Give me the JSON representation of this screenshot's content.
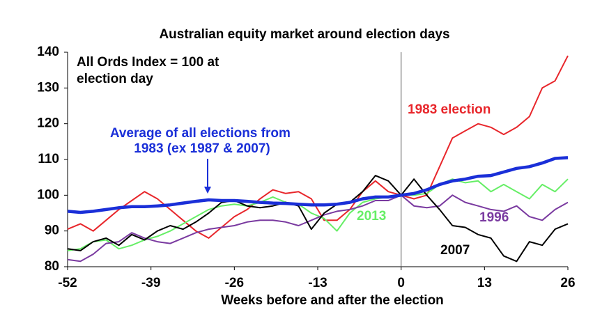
{
  "chart_data": {
    "type": "line",
    "title": "Australian equity market around election days",
    "xlabel": "Weeks before and after the election",
    "annotation": "All Ords Index = 100 at election day",
    "vline": 0,
    "xlim": [
      -52,
      26
    ],
    "xticks": [
      -52,
      -39,
      -26,
      -13,
      0,
      13,
      26
    ],
    "ylim": [
      80,
      140
    ],
    "yticks": [
      80,
      90,
      100,
      110,
      120,
      130,
      140
    ],
    "x": [
      -52,
      -50,
      -48,
      -46,
      -44,
      -42,
      -40,
      -38,
      -36,
      -34,
      -32,
      -30,
      -28,
      -26,
      -24,
      -22,
      -20,
      -18,
      -16,
      -14,
      -12,
      -10,
      -8,
      -6,
      -4,
      -2,
      0,
      2,
      4,
      6,
      8,
      10,
      12,
      14,
      16,
      18,
      20,
      22,
      24,
      26
    ],
    "series": [
      {
        "name": "1983 election",
        "color": "#e8262b",
        "values": [
          90.5,
          92,
          90,
          93,
          96,
          98.5,
          101,
          99,
          96,
          93,
          90,
          88,
          91,
          94,
          96,
          99,
          101.5,
          100.5,
          101,
          99,
          93,
          93,
          96,
          101,
          104,
          101,
          100,
          99,
          100,
          108,
          116,
          118,
          120,
          119,
          117,
          119,
          122,
          130,
          132,
          139
        ]
      },
      {
        "name": "2013",
        "color": "#66ee66",
        "values": [
          84.5,
          85,
          87,
          87.5,
          85,
          86,
          87.5,
          88.5,
          90,
          92,
          94,
          96,
          97,
          97.5,
          97,
          98,
          99.5,
          98,
          97.5,
          95,
          93.5,
          90,
          95,
          98,
          99,
          99.5,
          100,
          100,
          100.5,
          103,
          104.5,
          103.5,
          104,
          101,
          103,
          101,
          99,
          103,
          101,
          104.5
        ]
      },
      {
        "name": "1996",
        "color": "#7a3aa0",
        "values": [
          82,
          81.5,
          83.5,
          86.5,
          87,
          89.5,
          88,
          87,
          86.5,
          88,
          89.5,
          90.5,
          91,
          91.5,
          92.5,
          93,
          93,
          92.5,
          91.5,
          93,
          94.5,
          95.5,
          96,
          97,
          98.5,
          98.5,
          100,
          97,
          96.5,
          97,
          100,
          98,
          97,
          96,
          95.5,
          97,
          94,
          93,
          96,
          98
        ]
      },
      {
        "name": "2007",
        "color": "#000000",
        "values": [
          85,
          84.5,
          87,
          88,
          86,
          89,
          87.5,
          90,
          91.5,
          90.5,
          92.5,
          95,
          98,
          98.5,
          97,
          96.5,
          97,
          98,
          97,
          90.5,
          95,
          97.5,
          98,
          101,
          105.5,
          104,
          100,
          104.5,
          100,
          96,
          91.5,
          91,
          89,
          88,
          83,
          81.5,
          87,
          86,
          90.5,
          92
        ]
      },
      {
        "name": "Average of all elections from 1983 (ex 1987 & 2007)",
        "color": "#1a2fd8",
        "values": [
          95.5,
          95.2,
          95.5,
          96,
          96.5,
          96.8,
          96.8,
          97,
          97.3,
          97.8,
          98.3,
          98.7,
          98.5,
          98.5,
          98.3,
          98,
          97.8,
          97.7,
          97.5,
          97.3,
          97.3,
          97.5,
          98,
          99,
          99.5,
          99.5,
          100,
          100.5,
          101.5,
          103,
          104,
          104.5,
          105.3,
          105.5,
          106.5,
          107.5,
          108,
          109,
          110.3,
          110.5
        ]
      }
    ]
  }
}
